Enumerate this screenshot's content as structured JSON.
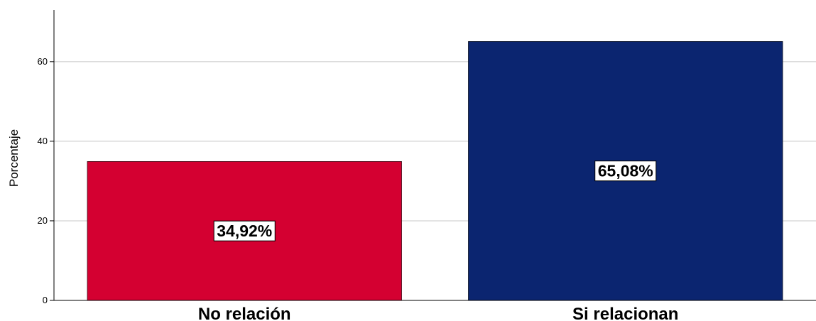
{
  "chart_data": {
    "type": "bar",
    "categories": [
      "No relación",
      "Si relacionan"
    ],
    "values": [
      34.92,
      65.08
    ],
    "data_labels": [
      "34,92%",
      "65,08%"
    ],
    "colors": [
      "#d40031",
      "#0b2570"
    ],
    "ylabel": "Porcentaje",
    "xlabel": "",
    "title": "",
    "ylim": [
      0,
      73
    ],
    "yticks": [
      0,
      20,
      40,
      60
    ],
    "grid": true,
    "legend": "none"
  }
}
